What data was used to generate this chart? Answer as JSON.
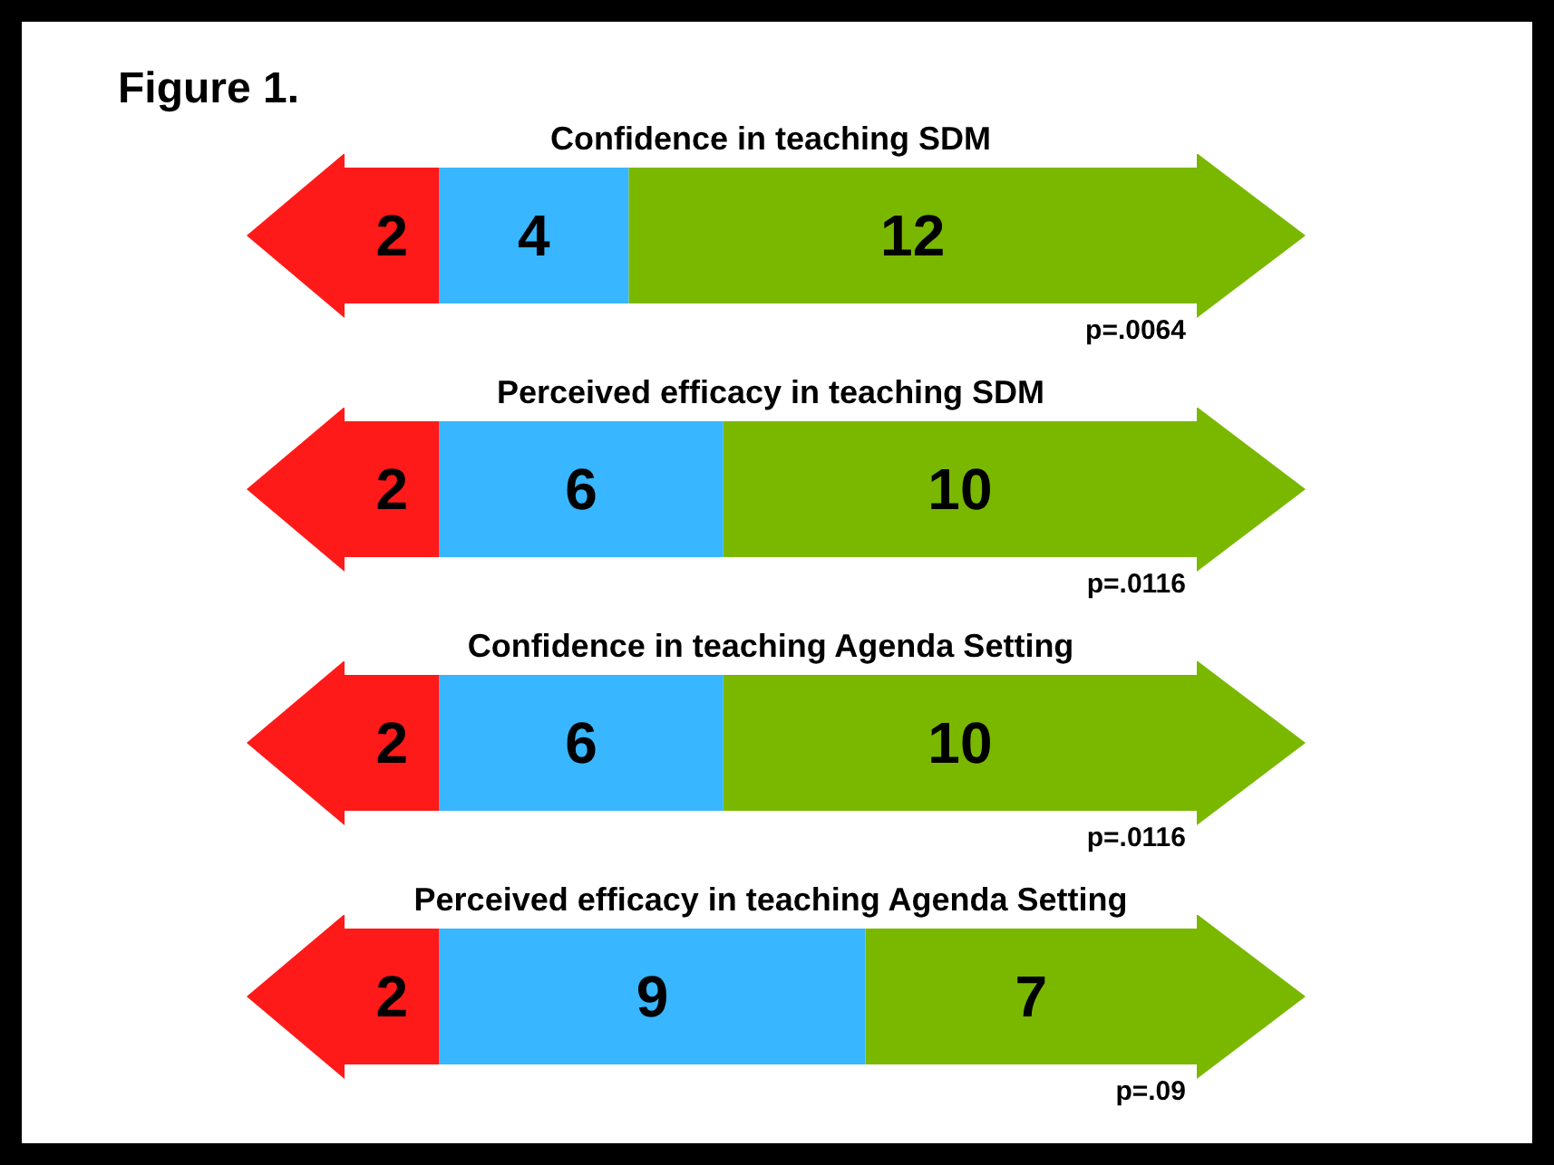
{
  "chart_data": {
    "type": "bar",
    "title": "Figure 1.",
    "orientation": "horizontal",
    "stacked": true,
    "data_labels": true,
    "legend": false,
    "categories": [
      "Confidence in teaching SDM",
      "Perceived efficacy in teaching SDM",
      "Confidence in teaching Agenda Setting",
      "Perceived efficacy in teaching Agenda Setting"
    ],
    "series": [
      {
        "color": "#ff1a1a",
        "values": [
          2,
          2,
          2,
          2
        ]
      },
      {
        "color": "#38b6ff",
        "values": [
          4,
          6,
          6,
          9
        ]
      },
      {
        "color": "#7ab800",
        "values": [
          12,
          10,
          10,
          7
        ]
      }
    ],
    "annotations": [
      "p=.0064",
      "p=.0116",
      "p=.0116",
      "p=.09"
    ]
  }
}
